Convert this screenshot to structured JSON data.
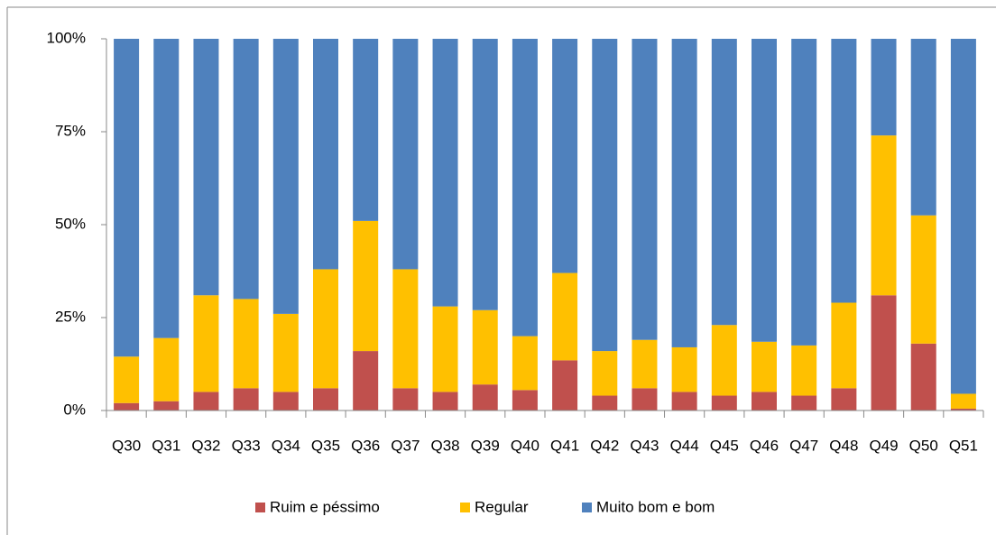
{
  "chart_data": {
    "type": "stacked_bar",
    "categories": [
      "Q30",
      "Q31",
      "Q32",
      "Q33",
      "Q34",
      "Q35",
      "Q36",
      "Q37",
      "Q38",
      "Q39",
      "Q40",
      "Q41",
      "Q42",
      "Q43",
      "Q44",
      "Q45",
      "Q46",
      "Q47",
      "Q48",
      "Q49",
      "Q50",
      "Q51"
    ],
    "series": [
      {
        "name": "Ruim e péssimo",
        "color": "#c0504d",
        "values": [
          2,
          2.5,
          5,
          6,
          5,
          6,
          16,
          6,
          5,
          7,
          5.5,
          13.5,
          4,
          6,
          5,
          4,
          5,
          4,
          6,
          31,
          18,
          0.5
        ]
      },
      {
        "name": "Regular",
        "color": "#ffc000",
        "values": [
          12.5,
          17,
          26,
          24,
          21,
          32,
          35,
          32,
          23,
          20,
          14.5,
          23.5,
          12,
          13,
          12,
          19,
          13.5,
          13.5,
          23,
          43,
          34.5,
          4
        ]
      },
      {
        "name": "Muito bom e bom",
        "color": "#4f81bd",
        "values": [
          85.5,
          80.5,
          69,
          70,
          74,
          62,
          49,
          62,
          72,
          73,
          80,
          63,
          84,
          81,
          83,
          77,
          81.5,
          82.5,
          71,
          26,
          47.5,
          95.5
        ]
      }
    ],
    "ylim": [
      0,
      100
    ],
    "yticks": [
      {
        "value": 0,
        "label": "0%"
      },
      {
        "value": 25,
        "label": "25%"
      },
      {
        "value": 50,
        "label": "50%"
      },
      {
        "value": 75,
        "label": "75%"
      },
      {
        "value": 100,
        "label": "100%"
      }
    ],
    "legend": "bottom"
  }
}
